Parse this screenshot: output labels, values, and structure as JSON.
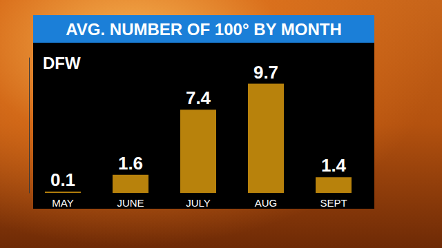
{
  "chart_data": {
    "type": "bar",
    "title": "AVG. NUMBER OF 100° BY MONTH",
    "subtitle": "DFW",
    "categories": [
      "MAY",
      "JUNE",
      "JULY",
      "AUG",
      "SEPT"
    ],
    "values": [
      0.1,
      1.6,
      7.4,
      9.7,
      1.4
    ],
    "color": "#b8820c",
    "ylim": [
      0,
      12
    ],
    "grid": false,
    "data_labels": true,
    "tick_labels": "x"
  }
}
